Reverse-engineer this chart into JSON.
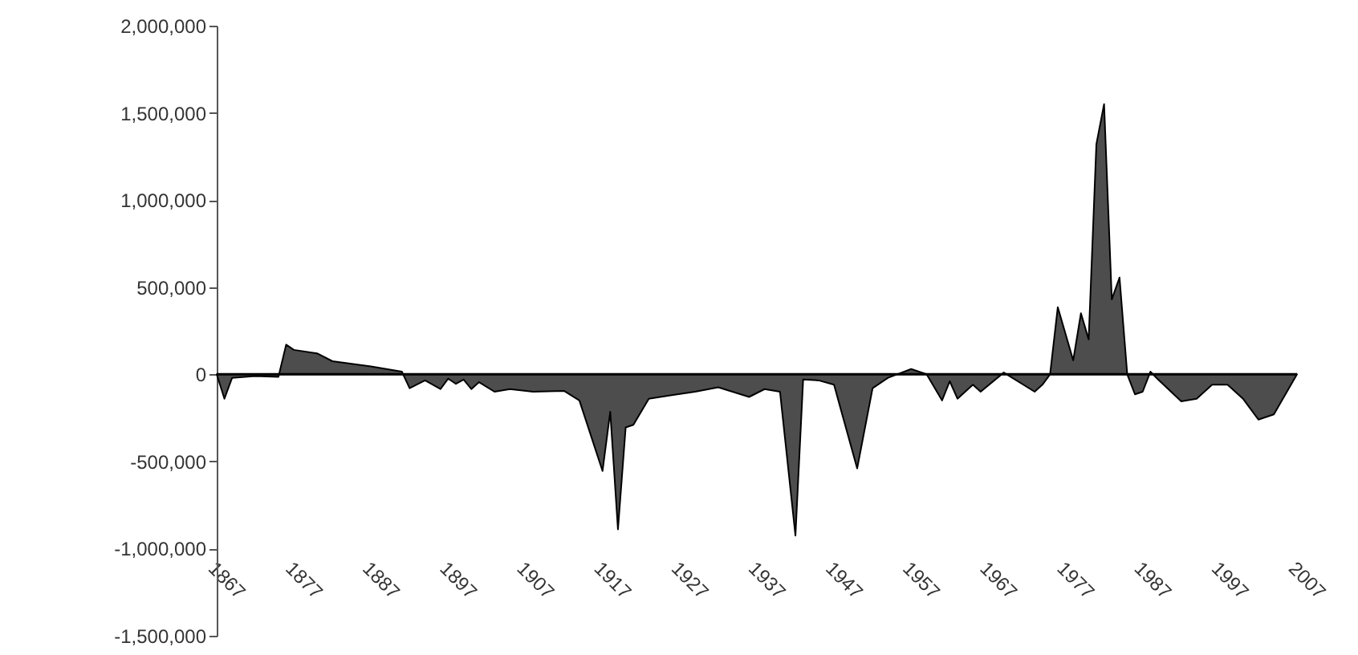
{
  "chart_data": {
    "type": "area",
    "x": [
      1867,
      1868,
      1869,
      1872,
      1875,
      1876,
      1877,
      1880,
      1882,
      1887,
      1891,
      1892,
      1894,
      1896,
      1897,
      1898,
      1899,
      1900,
      1901,
      1903,
      1905,
      1908,
      1912,
      1914,
      1917,
      1918,
      1919,
      1920,
      1921,
      1923,
      1926,
      1929,
      1932,
      1936,
      1938,
      1940,
      1942,
      1943,
      1945,
      1947,
      1950,
      1952,
      1954,
      1957,
      1959,
      1961,
      1962,
      1963,
      1965,
      1966,
      1969,
      1973,
      1974,
      1975,
      1976,
      1978,
      1979,
      1980,
      1981,
      1982,
      1983,
      1984,
      1985,
      1986,
      1987,
      1988,
      1989,
      1992,
      1994,
      1996,
      1998,
      2000,
      2002,
      2004,
      2007
    ],
    "series": [
      {
        "color": "#4d4d4d",
        "values": [
          0,
          -140000,
          -20000,
          -10000,
          -15000,
          170000,
          140000,
          120000,
          75000,
          45000,
          15000,
          -80000,
          -35000,
          -85000,
          -25000,
          -55000,
          -30000,
          -85000,
          -45000,
          -100000,
          -85000,
          -100000,
          -95000,
          -150000,
          -555000,
          -215000,
          -890000,
          -305000,
          -290000,
          -140000,
          -120000,
          -100000,
          -75000,
          -130000,
          -85000,
          -100000,
          -925000,
          -30000,
          -35000,
          -60000,
          -540000,
          -80000,
          -20000,
          30000,
          0,
          -150000,
          -40000,
          -140000,
          -60000,
          -100000,
          10000,
          -100000,
          -60000,
          0,
          385000,
          80000,
          350000,
          200000,
          1320000,
          1550000,
          430000,
          555000,
          0,
          -115000,
          -100000,
          15000,
          -30000,
          -155000,
          -140000,
          -60000,
          -60000,
          -140000,
          -260000,
          -230000,
          0
        ]
      }
    ],
    "xlim": [
      1867,
      2007
    ],
    "xticks": [
      1867,
      1877,
      1887,
      1897,
      1907,
      1917,
      1927,
      1937,
      1947,
      1957,
      1967,
      1977,
      1987,
      1997,
      2007
    ],
    "ylim": [
      -1500000,
      2000000
    ],
    "yticks": [
      {
        "value": -1500000,
        "label": "-1,500,000"
      },
      {
        "value": -1000000,
        "label": "-1,000,000"
      },
      {
        "value": -500000,
        "label": "-500,000"
      },
      0,
      {
        "value": 500000,
        "label": "500,000"
      },
      {
        "value": 1000000,
        "label": "1,000,000"
      },
      {
        "value": 1500000,
        "label": "1,500,000"
      },
      {
        "value": 2000000,
        "label": "2,000,000"
      }
    ],
    "ref_lines": [
      {
        "axis": "y",
        "value": 0,
        "color": "#000000"
      }
    ],
    "grid": false
  }
}
